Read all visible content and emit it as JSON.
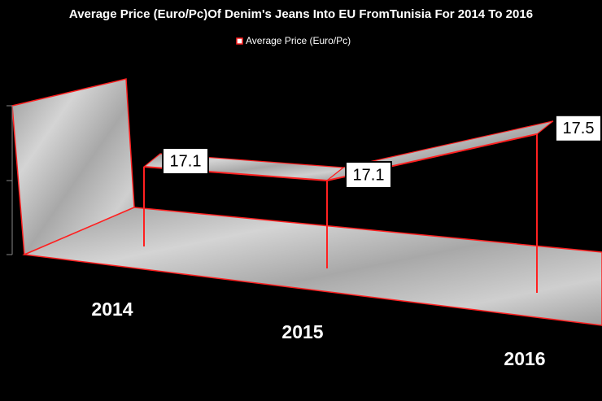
{
  "chart_data": {
    "type": "line3d",
    "title": "Average Price (Euro/Pc)Of Denim's Jeans Into EU FromTunisia For 2014 To 2016",
    "categories": [
      "2014",
      "2015",
      "2016"
    ],
    "series": [
      {
        "name": "Average Price (Euro/Pc)",
        "color": "#ff2020",
        "values": [
          17.1,
          17.1,
          17.5
        ],
        "value_labels": [
          "17.1",
          "17.1",
          "17.5"
        ]
      }
    ],
    "ylim": [
      16.7,
      17.7
    ]
  }
}
